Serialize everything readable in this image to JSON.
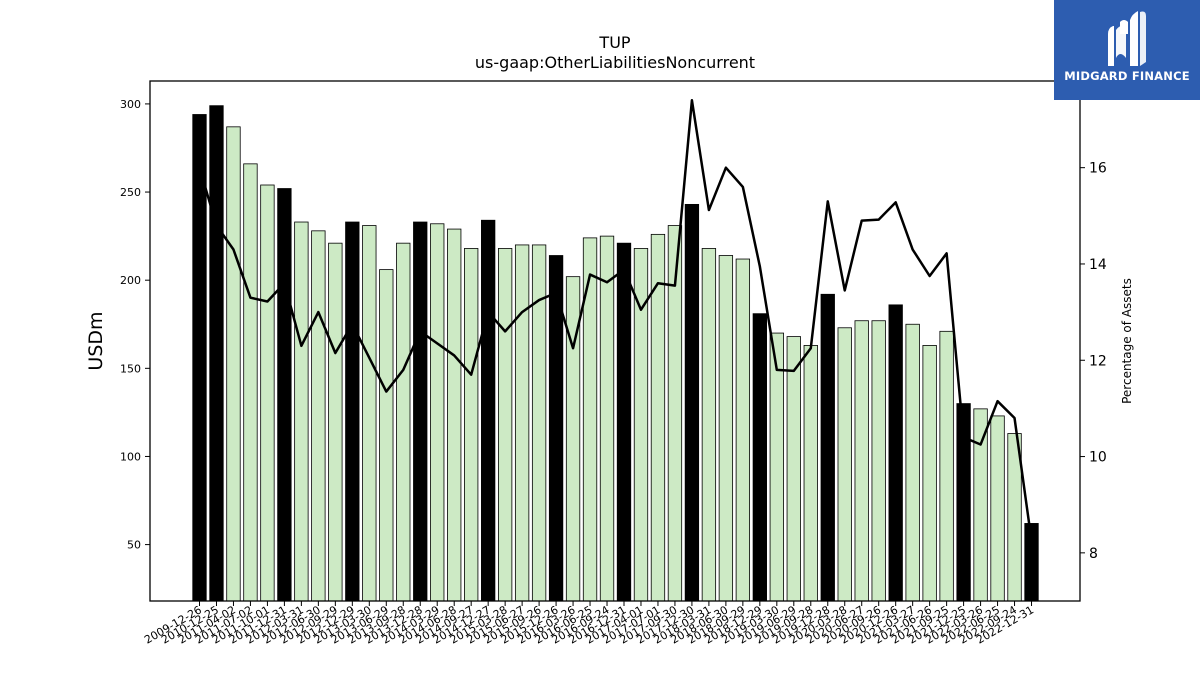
{
  "brand": {
    "name": "MIDGARD FINANCE",
    "bg_color": "#2d5db0",
    "icon": "midgard-logo-icon"
  },
  "chart_data": {
    "type": "bar",
    "title": "TUP",
    "subtitle": "us-gaap:OtherLiabilitiesNoncurrent",
    "ylabel": "USDm",
    "y2label": "Percentage of Assets",
    "ylim": [
      18,
      313
    ],
    "y2lim": [
      7.0,
      17.8
    ],
    "yticks": [
      50,
      100,
      150,
      200,
      250,
      300
    ],
    "y2ticks": [
      8,
      10,
      12,
      14,
      16
    ],
    "grid": false,
    "legend": "none",
    "colors": {
      "annual": "#000000",
      "quarterly": "#cdeac5",
      "line": "#000000",
      "edge": "#000000"
    },
    "categories": [
      "2009-12-26",
      "2010-12-25",
      "2011-04-02",
      "2011-07-02",
      "2011-10-01",
      "2011-12-31",
      "2012-03-31",
      "2012-06-30",
      "2012-09-29",
      "2012-12-29",
      "2013-03-30",
      "2013-06-29",
      "2013-09-28",
      "2013-12-28",
      "2014-03-29",
      "2014-06-28",
      "2014-09-27",
      "2014-12-27",
      "2015-03-28",
      "2015-06-27",
      "2015-09-26",
      "2015-12-26",
      "2016-03-26",
      "2016-06-25",
      "2016-09-24",
      "2016-12-31",
      "2017-04-01",
      "2017-07-01",
      "2017-09-30",
      "2017-12-30",
      "2018-03-31",
      "2018-06-30",
      "2018-09-29",
      "2018-12-29",
      "2019-03-30",
      "2019-06-29",
      "2019-09-28",
      "2019-12-28",
      "2020-03-28",
      "2020-06-27",
      "2020-09-26",
      "2020-12-26",
      "2021-03-27",
      "2021-06-26",
      "2021-09-25",
      "2021-12-25",
      "2022-03-26",
      "2022-06-25",
      "2022-09-24",
      "2022-12-31"
    ],
    "series": [
      {
        "kind": "bar",
        "values": [
          294,
          299,
          287,
          266,
          254,
          252,
          233,
          228,
          221,
          233,
          231,
          206,
          221,
          233,
          232,
          229,
          218,
          234,
          218,
          220,
          220,
          214,
          202,
          224,
          225,
          221,
          218,
          226,
          231,
          243,
          218,
          214,
          212,
          181,
          170,
          168,
          163,
          192,
          173,
          177,
          177,
          186,
          175,
          163,
          171,
          130,
          127,
          123,
          113,
          62
        ],
        "annual": [
          true,
          true,
          false,
          false,
          false,
          true,
          false,
          false,
          false,
          true,
          false,
          false,
          false,
          true,
          false,
          false,
          false,
          true,
          false,
          false,
          false,
          true,
          false,
          false,
          false,
          true,
          false,
          false,
          false,
          true,
          false,
          false,
          false,
          true,
          false,
          false,
          false,
          true,
          false,
          false,
          false,
          true,
          false,
          false,
          false,
          true,
          false,
          false,
          false,
          true
        ]
      },
      {
        "kind": "line",
        "axis": "right",
        "values": [
          16.0,
          14.8,
          14.3,
          13.3,
          13.22,
          13.6,
          12.3,
          13.0,
          12.15,
          12.75,
          12.05,
          11.35,
          11.8,
          12.6,
          12.35,
          12.1,
          11.7,
          13.0,
          12.6,
          13.0,
          13.25,
          13.4,
          12.25,
          13.78,
          13.62,
          13.88,
          13.05,
          13.6,
          13.55,
          17.4,
          15.12,
          16.0,
          15.6,
          13.95,
          11.8,
          11.78,
          12.25,
          15.3,
          13.45,
          14.9,
          14.92,
          15.28,
          14.3,
          13.75,
          14.22,
          10.4,
          10.25,
          11.15,
          10.8,
          8.25
        ]
      }
    ]
  }
}
